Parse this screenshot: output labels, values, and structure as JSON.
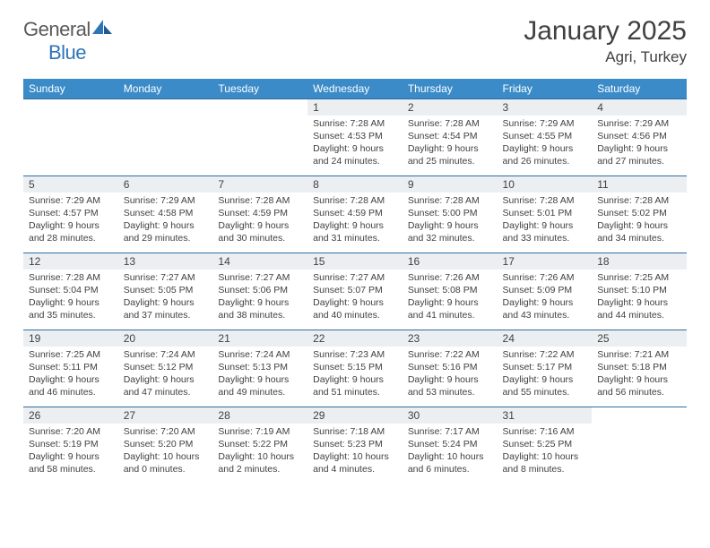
{
  "logo": {
    "general": "General",
    "blue": "Blue"
  },
  "title": "January 2025",
  "location": "Agri, Turkey",
  "colors": {
    "header_bg": "#3b8bc8",
    "header_text": "#ffffff",
    "daynum_bg": "#eceff1",
    "border": "#2e6ca0",
    "text": "#404040",
    "logo_blue": "#2e75b6",
    "logo_gray": "#5a5a5a",
    "page_bg": "#ffffff"
  },
  "weekdays": [
    "Sunday",
    "Monday",
    "Tuesday",
    "Wednesday",
    "Thursday",
    "Friday",
    "Saturday"
  ],
  "weeks": [
    [
      {
        "day": "",
        "lines": []
      },
      {
        "day": "",
        "lines": []
      },
      {
        "day": "",
        "lines": []
      },
      {
        "day": "1",
        "lines": [
          "Sunrise: 7:28 AM",
          "Sunset: 4:53 PM",
          "Daylight: 9 hours",
          "and 24 minutes."
        ]
      },
      {
        "day": "2",
        "lines": [
          "Sunrise: 7:28 AM",
          "Sunset: 4:54 PM",
          "Daylight: 9 hours",
          "and 25 minutes."
        ]
      },
      {
        "day": "3",
        "lines": [
          "Sunrise: 7:29 AM",
          "Sunset: 4:55 PM",
          "Daylight: 9 hours",
          "and 26 minutes."
        ]
      },
      {
        "day": "4",
        "lines": [
          "Sunrise: 7:29 AM",
          "Sunset: 4:56 PM",
          "Daylight: 9 hours",
          "and 27 minutes."
        ]
      }
    ],
    [
      {
        "day": "5",
        "lines": [
          "Sunrise: 7:29 AM",
          "Sunset: 4:57 PM",
          "Daylight: 9 hours",
          "and 28 minutes."
        ]
      },
      {
        "day": "6",
        "lines": [
          "Sunrise: 7:29 AM",
          "Sunset: 4:58 PM",
          "Daylight: 9 hours",
          "and 29 minutes."
        ]
      },
      {
        "day": "7",
        "lines": [
          "Sunrise: 7:28 AM",
          "Sunset: 4:59 PM",
          "Daylight: 9 hours",
          "and 30 minutes."
        ]
      },
      {
        "day": "8",
        "lines": [
          "Sunrise: 7:28 AM",
          "Sunset: 4:59 PM",
          "Daylight: 9 hours",
          "and 31 minutes."
        ]
      },
      {
        "day": "9",
        "lines": [
          "Sunrise: 7:28 AM",
          "Sunset: 5:00 PM",
          "Daylight: 9 hours",
          "and 32 minutes."
        ]
      },
      {
        "day": "10",
        "lines": [
          "Sunrise: 7:28 AM",
          "Sunset: 5:01 PM",
          "Daylight: 9 hours",
          "and 33 minutes."
        ]
      },
      {
        "day": "11",
        "lines": [
          "Sunrise: 7:28 AM",
          "Sunset: 5:02 PM",
          "Daylight: 9 hours",
          "and 34 minutes."
        ]
      }
    ],
    [
      {
        "day": "12",
        "lines": [
          "Sunrise: 7:28 AM",
          "Sunset: 5:04 PM",
          "Daylight: 9 hours",
          "and 35 minutes."
        ]
      },
      {
        "day": "13",
        "lines": [
          "Sunrise: 7:27 AM",
          "Sunset: 5:05 PM",
          "Daylight: 9 hours",
          "and 37 minutes."
        ]
      },
      {
        "day": "14",
        "lines": [
          "Sunrise: 7:27 AM",
          "Sunset: 5:06 PM",
          "Daylight: 9 hours",
          "and 38 minutes."
        ]
      },
      {
        "day": "15",
        "lines": [
          "Sunrise: 7:27 AM",
          "Sunset: 5:07 PM",
          "Daylight: 9 hours",
          "and 40 minutes."
        ]
      },
      {
        "day": "16",
        "lines": [
          "Sunrise: 7:26 AM",
          "Sunset: 5:08 PM",
          "Daylight: 9 hours",
          "and 41 minutes."
        ]
      },
      {
        "day": "17",
        "lines": [
          "Sunrise: 7:26 AM",
          "Sunset: 5:09 PM",
          "Daylight: 9 hours",
          "and 43 minutes."
        ]
      },
      {
        "day": "18",
        "lines": [
          "Sunrise: 7:25 AM",
          "Sunset: 5:10 PM",
          "Daylight: 9 hours",
          "and 44 minutes."
        ]
      }
    ],
    [
      {
        "day": "19",
        "lines": [
          "Sunrise: 7:25 AM",
          "Sunset: 5:11 PM",
          "Daylight: 9 hours",
          "and 46 minutes."
        ]
      },
      {
        "day": "20",
        "lines": [
          "Sunrise: 7:24 AM",
          "Sunset: 5:12 PM",
          "Daylight: 9 hours",
          "and 47 minutes."
        ]
      },
      {
        "day": "21",
        "lines": [
          "Sunrise: 7:24 AM",
          "Sunset: 5:13 PM",
          "Daylight: 9 hours",
          "and 49 minutes."
        ]
      },
      {
        "day": "22",
        "lines": [
          "Sunrise: 7:23 AM",
          "Sunset: 5:15 PM",
          "Daylight: 9 hours",
          "and 51 minutes."
        ]
      },
      {
        "day": "23",
        "lines": [
          "Sunrise: 7:22 AM",
          "Sunset: 5:16 PM",
          "Daylight: 9 hours",
          "and 53 minutes."
        ]
      },
      {
        "day": "24",
        "lines": [
          "Sunrise: 7:22 AM",
          "Sunset: 5:17 PM",
          "Daylight: 9 hours",
          "and 55 minutes."
        ]
      },
      {
        "day": "25",
        "lines": [
          "Sunrise: 7:21 AM",
          "Sunset: 5:18 PM",
          "Daylight: 9 hours",
          "and 56 minutes."
        ]
      }
    ],
    [
      {
        "day": "26",
        "lines": [
          "Sunrise: 7:20 AM",
          "Sunset: 5:19 PM",
          "Daylight: 9 hours",
          "and 58 minutes."
        ]
      },
      {
        "day": "27",
        "lines": [
          "Sunrise: 7:20 AM",
          "Sunset: 5:20 PM",
          "Daylight: 10 hours",
          "and 0 minutes."
        ]
      },
      {
        "day": "28",
        "lines": [
          "Sunrise: 7:19 AM",
          "Sunset: 5:22 PM",
          "Daylight: 10 hours",
          "and 2 minutes."
        ]
      },
      {
        "day": "29",
        "lines": [
          "Sunrise: 7:18 AM",
          "Sunset: 5:23 PM",
          "Daylight: 10 hours",
          "and 4 minutes."
        ]
      },
      {
        "day": "30",
        "lines": [
          "Sunrise: 7:17 AM",
          "Sunset: 5:24 PM",
          "Daylight: 10 hours",
          "and 6 minutes."
        ]
      },
      {
        "day": "31",
        "lines": [
          "Sunrise: 7:16 AM",
          "Sunset: 5:25 PM",
          "Daylight: 10 hours",
          "and 8 minutes."
        ]
      },
      {
        "day": "",
        "lines": []
      }
    ]
  ]
}
